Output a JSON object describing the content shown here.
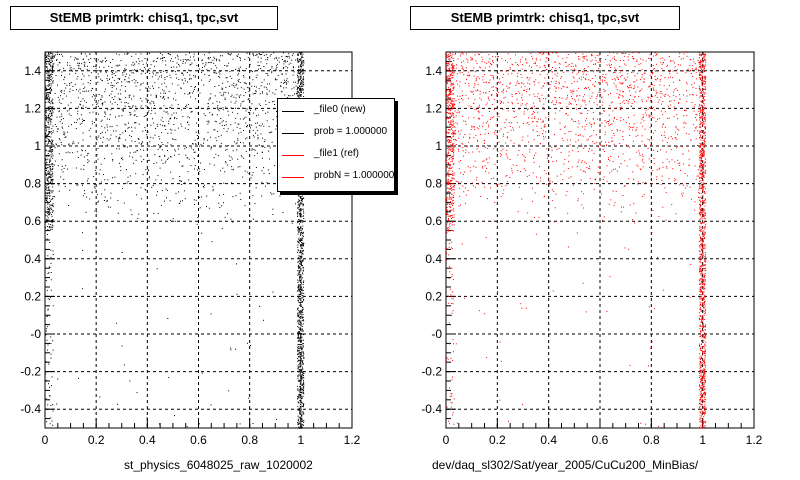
{
  "chart_data": [
    {
      "type": "scatter",
      "title": "StEMB primtrk: chisq1, tpc,svt",
      "xlabel": "st_physics_6048025_raw_1020002",
      "ylabel": "",
      "xlim": [
        0,
        1.2
      ],
      "ylim": [
        -0.5,
        1.5
      ],
      "xticks": [
        "0",
        "0.2",
        "0.4",
        "0.6",
        "0.8",
        "1",
        "1.2"
      ],
      "yticks": [
        "-0.4",
        "-0.2",
        "-0",
        "0.2",
        "0.4",
        "0.6",
        "0.8",
        "1",
        "1.2",
        "1.4"
      ],
      "grid": true,
      "point_color": "#000000",
      "legend": {
        "placement": "top-right",
        "entries": [
          {
            "label": "_file0 (new)",
            "color": "#000000"
          },
          {
            "label": "prob = 1.000000",
            "color": "#000000"
          },
          {
            "label": "_file1 (ref)",
            "color": "#ff0000"
          },
          {
            "label": "probN = 1.000000",
            "color": "#ff0000"
          }
        ]
      }
    },
    {
      "type": "scatter",
      "title": "StEMB primtrk: chisq1, tpc,svt",
      "xlabel": "dev/daq_sl302/Sat/year_2005/CuCu200_MinBias/",
      "ylabel": "",
      "xlim": [
        0,
        1.2
      ],
      "ylim": [
        -0.5,
        1.5
      ],
      "xticks": [
        "0",
        "0.2",
        "0.4",
        "0.6",
        "0.8",
        "1",
        "1.2"
      ],
      "yticks": [
        "-0.4",
        "-0.2",
        "-0",
        "0.2",
        "0.4",
        "0.6",
        "0.8",
        "1",
        "1.2",
        "1.4"
      ],
      "grid": true,
      "point_color": "#ff0000"
    }
  ]
}
